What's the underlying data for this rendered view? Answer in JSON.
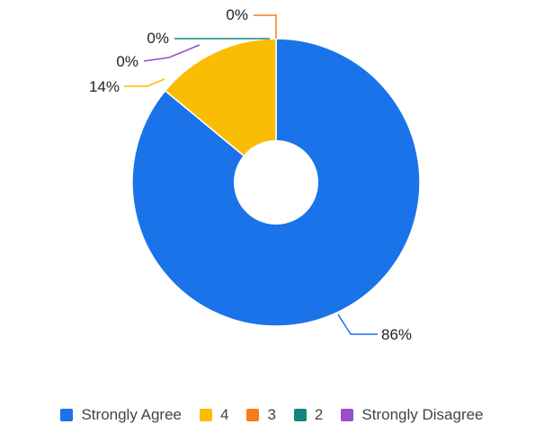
{
  "chart_data": {
    "type": "pie",
    "donut": true,
    "labels": [
      "Strongly Agree",
      "4",
      "3",
      "2",
      "Strongly Disagree"
    ],
    "values": [
      86,
      14,
      0,
      0,
      0
    ],
    "value_labels": [
      "86%",
      "14%",
      "0%",
      "0%",
      "0%"
    ],
    "colors": [
      "#1a73e8",
      "#fbbc04",
      "#fa7b17",
      "#12857f",
      "#9b4dca"
    ],
    "legend_position": "bottom"
  }
}
